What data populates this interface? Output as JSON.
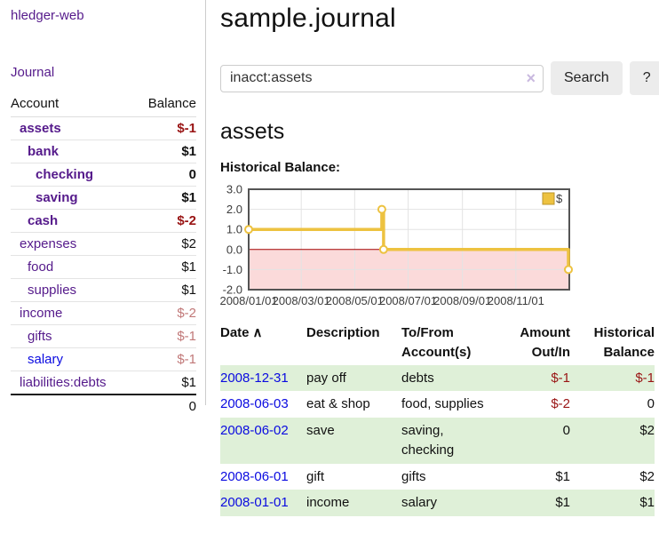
{
  "sidebar": {
    "app_title": "hledger-web",
    "nav": {
      "journal_label": "Journal"
    },
    "accounts_table": {
      "headers": {
        "account": "Account",
        "balance": "Balance"
      },
      "rows": [
        {
          "name": "assets",
          "indent": 0,
          "bold": true,
          "link_color": "purple",
          "balance": "$-1",
          "balance_class": "neg"
        },
        {
          "name": "bank",
          "indent": 1,
          "bold": true,
          "link_color": "purple",
          "balance": "$1",
          "balance_class": ""
        },
        {
          "name": "checking",
          "indent": 2,
          "bold": true,
          "link_color": "purple",
          "balance": "0",
          "balance_class": ""
        },
        {
          "name": "saving",
          "indent": 2,
          "bold": true,
          "link_color": "purple",
          "balance": "$1",
          "balance_class": ""
        },
        {
          "name": "cash",
          "indent": 1,
          "bold": true,
          "link_color": "purple",
          "balance": "$-2",
          "balance_class": "neg"
        },
        {
          "name": "expenses",
          "indent": 0,
          "bold": false,
          "link_color": "purple",
          "balance": "$2",
          "balance_class": ""
        },
        {
          "name": "food",
          "indent": 1,
          "bold": false,
          "link_color": "purple",
          "balance": "$1",
          "balance_class": ""
        },
        {
          "name": "supplies",
          "indent": 1,
          "bold": false,
          "link_color": "purple",
          "balance": "$1",
          "balance_class": ""
        },
        {
          "name": "income",
          "indent": 0,
          "bold": false,
          "link_color": "purple",
          "balance": "$-2",
          "balance_class": "negmuted"
        },
        {
          "name": "gifts",
          "indent": 1,
          "bold": false,
          "link_color": "purple",
          "balance": "$-1",
          "balance_class": "negmuted"
        },
        {
          "name": "salary",
          "indent": 1,
          "bold": false,
          "link_color": "blue",
          "balance": "$-1",
          "balance_class": "negmuted"
        },
        {
          "name": "liabilities:debts",
          "indent": 0,
          "bold": false,
          "link_color": "purple",
          "balance": "$1",
          "balance_class": ""
        }
      ],
      "total": "0"
    }
  },
  "main": {
    "title": "sample.journal",
    "search": {
      "value": "inacct:assets",
      "clear_icon": "×",
      "button_label": "Search",
      "help_label": "?"
    },
    "account_heading": "assets",
    "chart_heading": "Historical Balance:",
    "register_table": {
      "headers": {
        "date": "Date",
        "sort_icon": "∧",
        "description": "Description",
        "accounts": "To/From Account(s)",
        "amount": "Amount Out/In",
        "balance": "Historical Balance"
      },
      "rows": [
        {
          "date": "2008-12-31",
          "description": "pay off",
          "accounts": "debts",
          "amount": "$-1",
          "amount_class": "neg",
          "balance": "$-1",
          "balance_class": "neg"
        },
        {
          "date": "2008-06-03",
          "description": "eat & shop",
          "accounts": "food, supplies",
          "amount": "$-2",
          "amount_class": "neg",
          "balance": "0",
          "balance_class": ""
        },
        {
          "date": "2008-06-02",
          "description": "save",
          "accounts": "saving, checking",
          "amount": "0",
          "amount_class": "",
          "balance": "$2",
          "balance_class": ""
        },
        {
          "date": "2008-06-01",
          "description": "gift",
          "accounts": "gifts",
          "amount": "$1",
          "amount_class": "",
          "balance": "$2",
          "balance_class": ""
        },
        {
          "date": "2008-01-01",
          "description": "income",
          "accounts": "salary",
          "amount": "$1",
          "amount_class": "",
          "balance": "$1",
          "balance_class": ""
        }
      ]
    }
  },
  "chart_data": {
    "type": "line",
    "subtype": "step",
    "title": "Historical Balance",
    "series": [
      {
        "name": "$",
        "color": "#edc240",
        "points": [
          {
            "date": "2008-01-01",
            "value": 1
          },
          {
            "date": "2008-06-01",
            "value": 2
          },
          {
            "date": "2008-06-03",
            "value": 0
          },
          {
            "date": "2008-12-31",
            "value": -1
          }
        ]
      }
    ],
    "x_range": [
      "2008-01-01",
      "2009-01-01"
    ],
    "x_ticks": [
      "2008/01/01",
      "2008/03/01",
      "2008/05/01",
      "2008/07/01",
      "2008/09/01",
      "2008/11/01"
    ],
    "y_ticks": [
      3.0,
      2.0,
      1.0,
      0.0,
      -1.0,
      -2.0
    ],
    "ylim": [
      -2,
      3
    ],
    "grid": true,
    "legend_position": "top-right",
    "colors": {
      "negative_region": "#fbdada",
      "zero_line": "#a40000",
      "grid_line": "#e3e3e3",
      "plot_border": "#545454",
      "legend_swatch_border": "#bb9а2c"
    }
  },
  "colors": {
    "link_purple": "#551a8b",
    "link_blue": "#0a0ae0",
    "negative_strong": "#991414",
    "negative_muted": "#c17878",
    "row_stripe_green": "#dff0d8",
    "button_gray": "#ececec"
  }
}
